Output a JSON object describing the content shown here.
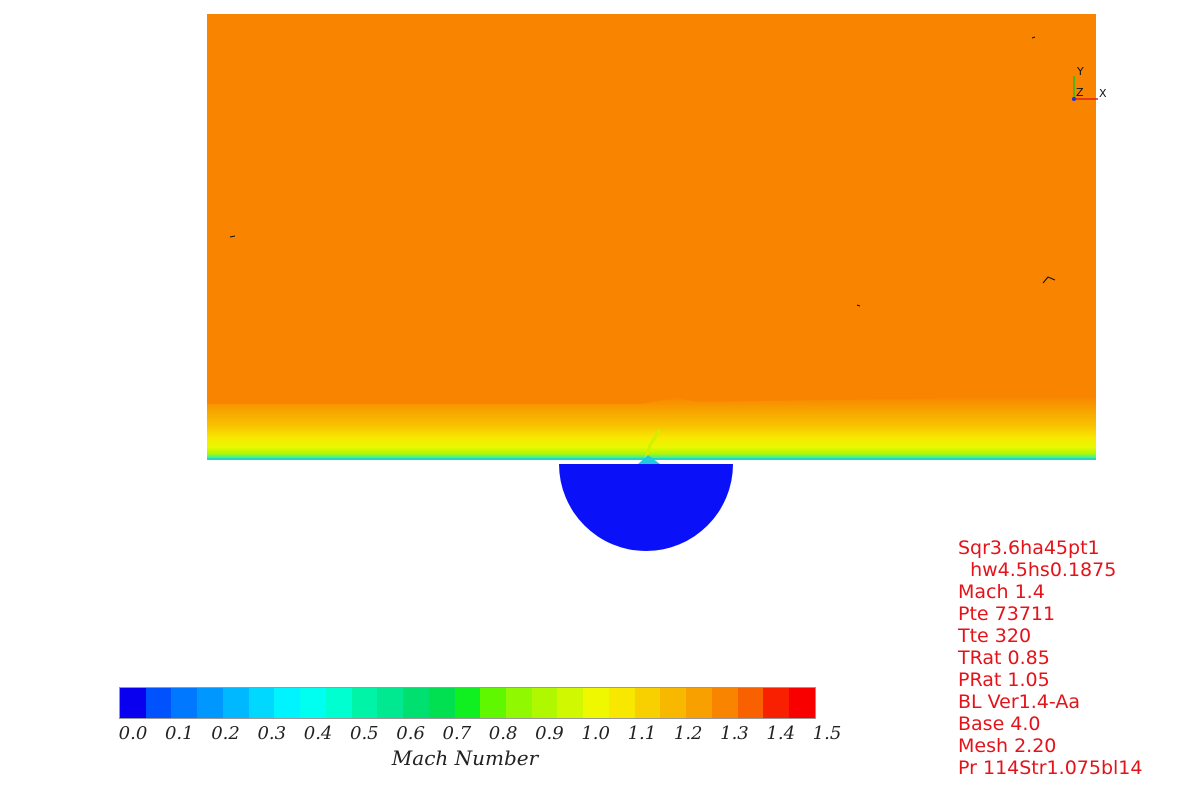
{
  "triad": {
    "x_label": "X",
    "y_label": "Y",
    "z_label": "Z"
  },
  "colorbar": {
    "title": "Mach Number",
    "ticks": [
      "0.0",
      "0.1",
      "0.2",
      "0.3",
      "0.4",
      "0.5",
      "0.6",
      "0.7",
      "0.8",
      "0.9",
      "1.0",
      "1.1",
      "1.2",
      "1.3",
      "1.4",
      "1.5"
    ],
    "colors": [
      "#0a00f0",
      "#0052ff",
      "#0078ff",
      "#0098ff",
      "#00b8ff",
      "#00d8ff",
      "#00f4ff",
      "#00fff0",
      "#00ffd0",
      "#00f4a8",
      "#00e890",
      "#00e070",
      "#00e050",
      "#10f020",
      "#60f800",
      "#90f800",
      "#b0f800",
      "#d0f800",
      "#f0f800",
      "#f8e800",
      "#f8d000",
      "#f8b800",
      "#f8a000",
      "#f88400",
      "#f86000",
      "#f82000",
      "#f80000"
    ]
  },
  "field": {
    "freestream_color": "#f88400",
    "cylinder_color": "#0a10f8"
  },
  "info_lines": [
    "Sqr3.6ha45pt1",
    "  hw4.5hs0.1875",
    "Mach 1.4",
    "Pte 73711",
    "Tte 320",
    "TRat 0.85",
    "PRat 1.05",
    "BL Ver1.4-Aa",
    "Base 4.0",
    "Mesh 2.20",
    "Pr 114Str1.075bl14"
  ]
}
